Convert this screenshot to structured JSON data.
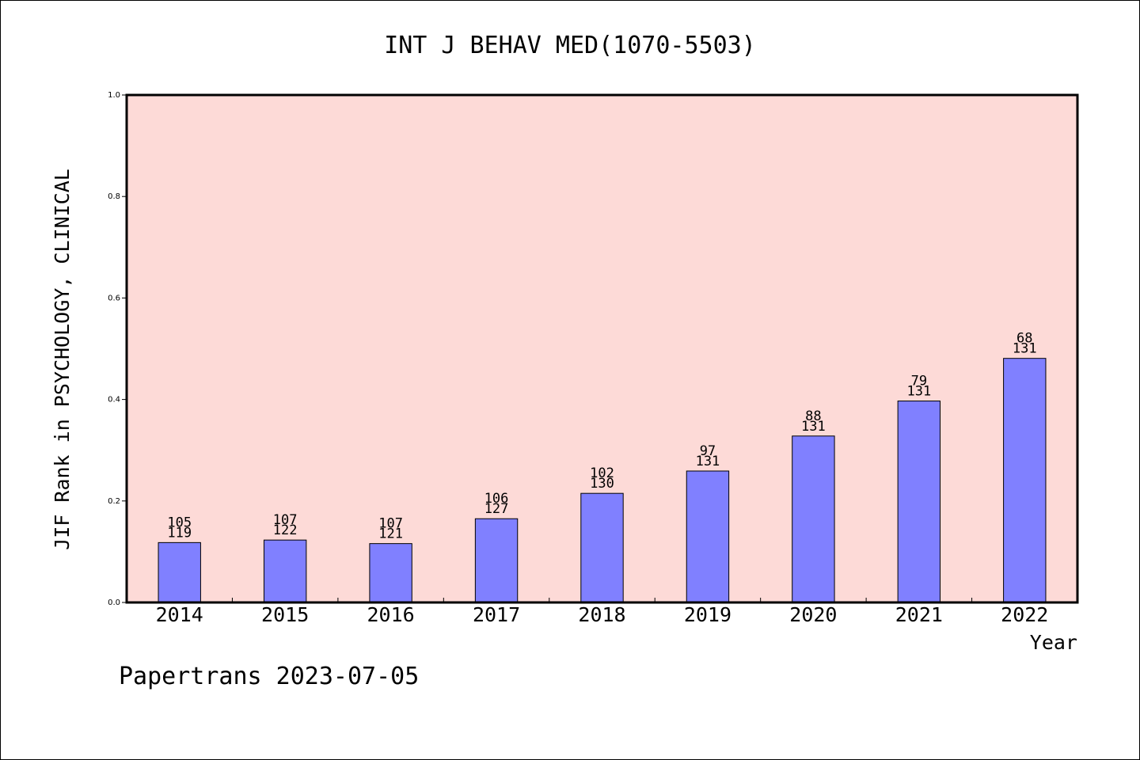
{
  "chart_data": {
    "type": "bar",
    "title": "INT J BEHAV MED(1070-5503)",
    "xlabel": "Year",
    "ylabel": "JIF Rank in PSYCHOLOGY, CLINICAL",
    "ylim": [
      0,
      1.0
    ],
    "yticks": [
      "0.0",
      "0.2",
      "0.4",
      "0.6",
      "0.8",
      "1.0"
    ],
    "grid": false,
    "categories": [
      "2014",
      "2015",
      "2016",
      "2017",
      "2018",
      "2019",
      "2020",
      "2021",
      "2022"
    ],
    "values": [
      0.118,
      0.123,
      0.116,
      0.165,
      0.215,
      0.259,
      0.328,
      0.397,
      0.481
    ],
    "rank": [
      "105",
      "107",
      "107",
      "106",
      "102",
      "97",
      "88",
      "79",
      "68"
    ],
    "total": [
      "119",
      "122",
      "121",
      "127",
      "130",
      "131",
      "131",
      "131",
      "131"
    ],
    "colors": {
      "plot_bg": "#fddad7",
      "bar": "#8080ff",
      "axis": "#000000"
    }
  },
  "footer": {
    "watermark": "Papertrans 2023-07-05"
  }
}
